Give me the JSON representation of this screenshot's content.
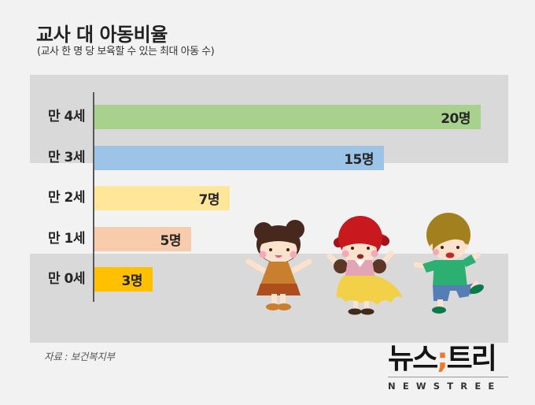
{
  "header": {
    "title": "교사 대 아동비율",
    "subtitle": "(교사 한 명 당 보육할 수 있는 최대 아동 수)"
  },
  "chart_data": {
    "type": "bar",
    "orientation": "horizontal",
    "title": "교사 대 아동비율",
    "subtitle": "(교사 한 명 당 보육할 수 있는 최대 아동 수)",
    "categories": [
      "만 4세",
      "만 3세",
      "만 2세",
      "만 1세",
      "만 0세"
    ],
    "values": [
      20,
      15,
      7,
      5,
      3
    ],
    "value_labels": [
      "20명",
      "15명",
      "7명",
      "5명",
      "3명"
    ],
    "unit": "명",
    "bar_colors": [
      "#A9D18E",
      "#9DC3E6",
      "#FFE699",
      "#F8CBAD",
      "#FFC000"
    ],
    "xlim": [
      0,
      21.4
    ],
    "grid": false,
    "legend": "none",
    "axis_color": "#595959",
    "band_color": "#D9D9D9"
  },
  "illustration": {
    "figures": [
      "girl-orange-dress",
      "girl-red-pigtails-yellow-skirt",
      "boy-green-shirt"
    ]
  },
  "footer": {
    "source": "자료 : 보건복지부"
  },
  "logo": {
    "kr_part1": "뉴스",
    "semicolon": ";",
    "kr_part2": "트리",
    "english": "NEWSTREE",
    "accent_color": "#F07828"
  }
}
